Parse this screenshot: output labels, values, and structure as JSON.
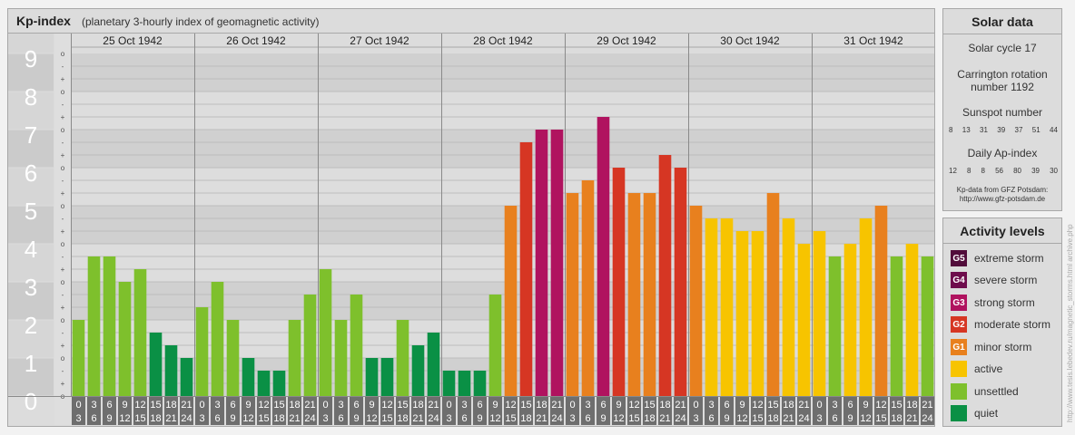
{
  "header": {
    "title": "Kp-index",
    "subtitle": "(planetary 3-hourly index of geomagnetic activity)"
  },
  "chart_data": {
    "type": "bar",
    "title": "Kp-index",
    "subtitle": "(planetary 3-hourly index of geomagnetic activity)",
    "ylim": [
      0,
      9
    ],
    "y_ticks": [
      "0",
      "1",
      "2",
      "3",
      "4",
      "5",
      "6",
      "7",
      "8",
      "9"
    ],
    "y_minor_ticks": [
      "o",
      "+",
      "-"
    ],
    "days": [
      "25 Oct 1942",
      "26 Oct 1942",
      "27 Oct 1942",
      "28 Oct 1942",
      "29 Oct 1942",
      "30 Oct 1942",
      "31 Oct 1942"
    ],
    "interval_start": [
      "0",
      "3",
      "6",
      "9",
      "12",
      "15",
      "18",
      "21"
    ],
    "interval_end": [
      "3",
      "6",
      "9",
      "12",
      "15",
      "18",
      "21",
      "24"
    ],
    "values": [
      [
        2.0,
        3.667,
        3.667,
        3.0,
        3.333,
        1.667,
        1.333,
        1.0
      ],
      [
        2.333,
        3.0,
        2.0,
        1.0,
        0.667,
        0.667,
        2.0,
        2.667
      ],
      [
        3.333,
        2.0,
        2.667,
        1.0,
        1.0,
        2.0,
        1.333,
        1.667
      ],
      [
        0.667,
        0.667,
        0.667,
        2.667,
        5.0,
        6.667,
        7.0,
        7.0
      ],
      [
        5.333,
        5.667,
        7.333,
        6.0,
        5.333,
        5.333,
        6.333,
        6.0
      ],
      [
        5.0,
        4.667,
        4.667,
        4.333,
        4.333,
        5.333,
        4.667,
        4.0
      ],
      [
        4.333,
        3.667,
        4.0,
        4.667,
        5.0,
        3.667,
        4.0,
        3.667
      ]
    ],
    "grid": true
  },
  "solar": {
    "title": "Solar data",
    "cycle": "Solar cycle 17",
    "carrington_line1": "Carrington rotation",
    "carrington_line2": "number 1192",
    "sunspot_title": "Sunspot number",
    "sunspot_values": [
      "8",
      "13",
      "31",
      "39",
      "37",
      "51",
      "44"
    ],
    "ap_title": "Daily Ap-index",
    "ap_values": [
      "12",
      "8",
      "8",
      "56",
      "80",
      "39",
      "30"
    ],
    "source_line1": "Kp-data from GFZ Potsdam:",
    "source_line2": "http://www.gfz-potsdam.de"
  },
  "activity": {
    "title": "Activity levels",
    "levels": [
      {
        "badge": "G5",
        "label": "extreme storm",
        "color": "#520d3b"
      },
      {
        "badge": "G4",
        "label": "severe storm",
        "color": "#6e0c4c"
      },
      {
        "badge": "G3",
        "label": "strong storm",
        "color": "#b0135f"
      },
      {
        "badge": "G2",
        "label": "moderate storm",
        "color": "#d63623"
      },
      {
        "badge": "G1",
        "label": "minor storm",
        "color": "#e8801e"
      },
      {
        "badge": "",
        "label": "active",
        "color": "#f7c400"
      },
      {
        "badge": "",
        "label": "unsettled",
        "color": "#7ec02c"
      },
      {
        "badge": "",
        "label": "quiet",
        "color": "#0a9045"
      }
    ]
  },
  "watermark": "http://www.tesis.lebedev.ru/magnetic_storms.html  archive.php"
}
